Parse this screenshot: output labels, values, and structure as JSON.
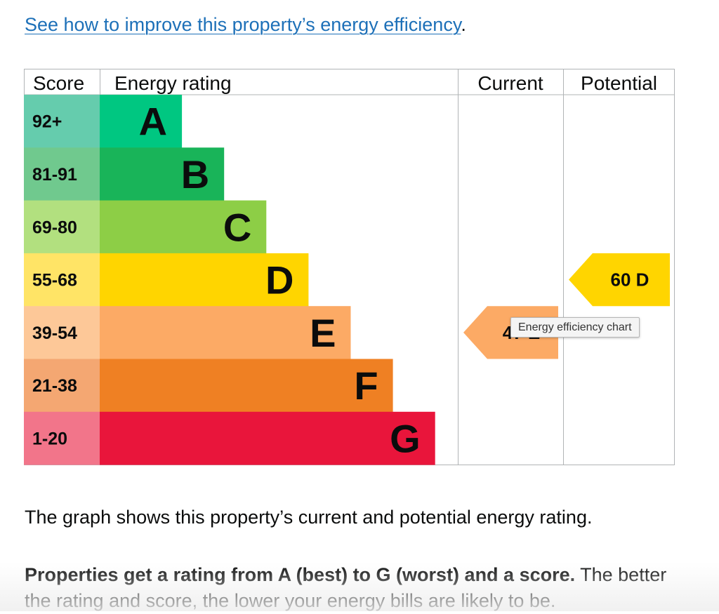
{
  "intro": {
    "link_text": "See how to improve this property’s energy efficiency",
    "trailing": "."
  },
  "chart_data": {
    "type": "table",
    "headers": {
      "score": "Score",
      "rating": "Energy rating",
      "current": "Current",
      "potential": "Potential"
    },
    "bands": [
      {
        "score": "92+",
        "letter": "A",
        "width_units": 1,
        "bar_color": "#00c781",
        "score_bg": "#65ccad"
      },
      {
        "score": "81-91",
        "letter": "B",
        "width_units": 2,
        "bar_color": "#19b459",
        "score_bg": "#70c98e"
      },
      {
        "score": "69-80",
        "letter": "C",
        "width_units": 3,
        "bar_color": "#8dce46",
        "score_bg": "#b2e07f"
      },
      {
        "score": "55-68",
        "letter": "D",
        "width_units": 4,
        "bar_color": "#ffd500",
        "score_bg": "#ffe466"
      },
      {
        "score": "39-54",
        "letter": "E",
        "width_units": 5,
        "bar_color": "#fcaa65",
        "score_bg": "#fdc898"
      },
      {
        "score": "21-38",
        "letter": "F",
        "width_units": 6,
        "bar_color": "#ef8023",
        "score_bg": "#f4a772"
      },
      {
        "score": "1-20",
        "letter": "G",
        "width_units": 7,
        "bar_color": "#e9153b",
        "score_bg": "#f2758a"
      }
    ],
    "current": {
      "score": 47,
      "letter": "E",
      "label": "47 E"
    },
    "potential": {
      "score": 60,
      "letter": "D",
      "label": "60 D"
    }
  },
  "tooltip": "Energy efficiency chart",
  "paragraphs": {
    "p1": "The graph shows this property’s current and potential energy rating.",
    "p2_bold": "Properties get a rating from A (best) to G (worst) and a score.",
    "p2_rest": " The better the rating and score, the lower your energy bills are likely to be."
  }
}
